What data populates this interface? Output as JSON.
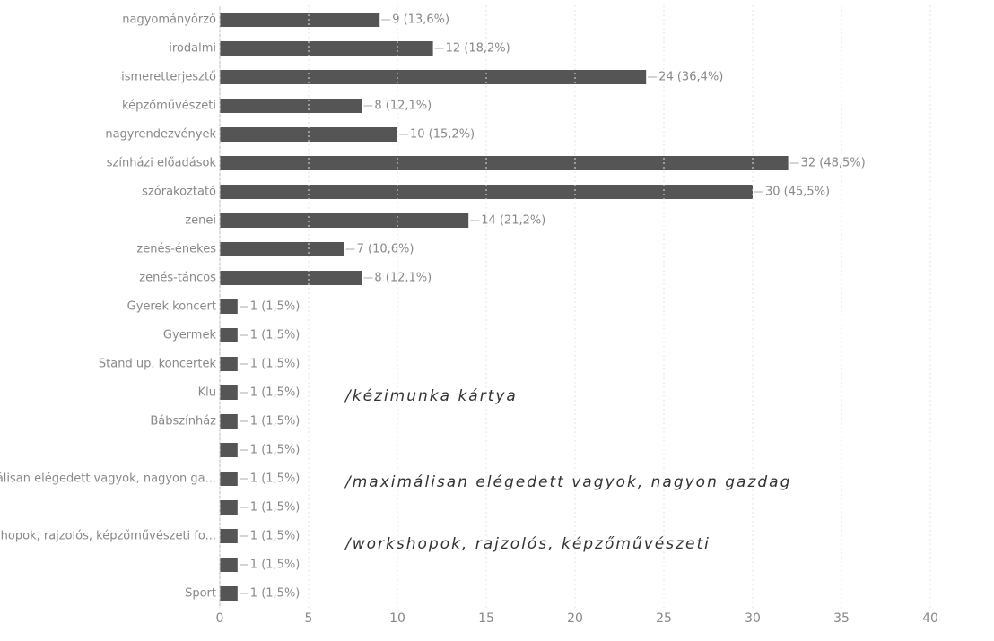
{
  "chart_data": {
    "type": "bar",
    "orientation": "horizontal",
    "categories": [
      "nagyományőrző",
      "irodalmi",
      "ismeretterjesztő",
      "képzőművészeti",
      "nagyrendezvények",
      "színházi előadások",
      "szórakoztató",
      "zenei",
      "zenés-énekes",
      "zenés-táncos",
      "Gyerek koncert",
      "Gyermek",
      "Stand up, koncertek",
      "Klu",
      "Bábszínház",
      null,
      "maximálisan elégedett vagyok, nagyon ga...",
      null,
      "workshopok, rajzolós, képzőművészeti fo...",
      null,
      "Sport"
    ],
    "values": [
      9,
      12,
      24,
      8,
      10,
      32,
      30,
      14,
      7,
      8,
      1,
      1,
      1,
      1,
      1,
      1,
      1,
      1,
      1,
      1,
      1
    ],
    "value_labels": [
      "9 (13,6%)",
      "12 (18,2%)",
      "24 (36,4%)",
      "8 (12,1%)",
      "10 (15,2%)",
      "32 (48,5%)",
      "30 (45,5%)",
      "14 (21,2%)",
      "7 (10,6%)",
      "8 (12,1%)",
      "1 (1,5%)",
      "1 (1,5%)",
      "1 (1,5%)",
      "1 (1,5%)",
      "1 (1,5%)",
      "1 (1,5%)",
      "1 (1,5%)",
      "1 (1,5%)",
      "1 (1,5%)",
      "1 (1,5%)",
      "1 (1,5%)"
    ],
    "color": "#555555",
    "xlim": [
      0,
      40
    ],
    "xticks": [
      0,
      5,
      10,
      15,
      20,
      25,
      30,
      35,
      40
    ],
    "grid": true,
    "annotations": [
      "/kézimunka kártya",
      "/maximálisan elégedett vagyok, nagyon gazdag",
      "/workshopok, rajzolós, képzőművészeti"
    ]
  }
}
